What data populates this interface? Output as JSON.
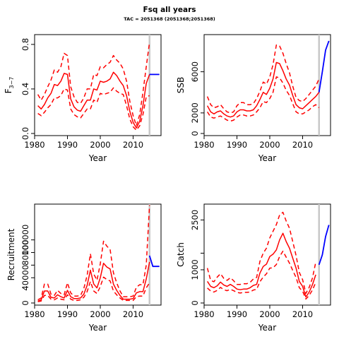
{
  "figure": {
    "title": "Fsq all years",
    "subtitle": "TAC = 2051368 (2051368;2051368)"
  },
  "chart_data": [
    {
      "type": "line",
      "panel": "F",
      "xlabel": "Year",
      "ylabel": "F",
      "ylabel_bar": "‾",
      "ylabel_sub": "3−7",
      "xlim": [
        1980,
        2018.5
      ],
      "ylim": [
        0,
        0.85
      ],
      "xticks": [
        1980,
        1990,
        2000,
        2010
      ],
      "yticks": [
        0.0,
        0.4,
        0.8
      ],
      "ytick_labels": [
        "0.0",
        "0.4",
        "0.8"
      ],
      "grid": false,
      "forecast_divider_year": 2015,
      "colors": {
        "estimate": "#ff0000",
        "ci": "#ff0000",
        "forecast": "#0000ff",
        "divider": "#c8c8c8"
      },
      "x": [
        1981,
        1982,
        1983,
        1984,
        1985,
        1986,
        1987,
        1988,
        1989,
        1990,
        1991,
        1992,
        1993,
        1994,
        1995,
        1996,
        1997,
        1998,
        1999,
        2000,
        2001,
        2002,
        2003,
        2004,
        2005,
        2006,
        2007,
        2008,
        2009,
        2010,
        2011,
        2012,
        2013,
        2014,
        2015
      ],
      "series": [
        {
          "role": "estimate",
          "values": [
            0.25,
            0.22,
            0.26,
            0.32,
            0.36,
            0.44,
            0.43,
            0.47,
            0.54,
            0.53,
            0.31,
            0.24,
            0.21,
            0.2,
            0.25,
            0.3,
            0.3,
            0.4,
            0.39,
            0.47,
            0.46,
            0.47,
            0.49,
            0.55,
            0.52,
            0.47,
            0.43,
            0.34,
            0.2,
            0.1,
            0.05,
            0.11,
            0.25,
            0.45,
            0.53
          ]
        },
        {
          "role": "upper",
          "values": [
            0.35,
            0.3,
            0.35,
            0.42,
            0.48,
            0.57,
            0.55,
            0.6,
            0.72,
            0.7,
            0.42,
            0.33,
            0.28,
            0.27,
            0.32,
            0.4,
            0.4,
            0.53,
            0.52,
            0.6,
            0.59,
            0.62,
            0.64,
            0.7,
            0.66,
            0.63,
            0.58,
            0.47,
            0.29,
            0.16,
            0.07,
            0.17,
            0.37,
            0.6,
            0.82
          ]
        },
        {
          "role": "lower",
          "values": [
            0.18,
            0.16,
            0.19,
            0.23,
            0.26,
            0.32,
            0.32,
            0.34,
            0.4,
            0.39,
            0.22,
            0.17,
            0.15,
            0.14,
            0.18,
            0.22,
            0.22,
            0.3,
            0.28,
            0.36,
            0.35,
            0.36,
            0.37,
            0.41,
            0.38,
            0.36,
            0.35,
            0.25,
            0.13,
            0.06,
            0.03,
            0.07,
            0.17,
            0.33,
            0.34
          ]
        }
      ],
      "forecast": {
        "x": [
          2015,
          2016,
          2017,
          2018
        ],
        "values": [
          0.53,
          0.53,
          0.53,
          0.53
        ]
      }
    },
    {
      "type": "line",
      "panel": "SSB",
      "xlabel": "Year",
      "ylabel": "SSB",
      "xlim": [
        1980,
        2018.5
      ],
      "ylim": [
        0,
        9200
      ],
      "xticks": [
        1980,
        1990,
        2000,
        2010
      ],
      "yticks": [
        0,
        2000,
        6000
      ],
      "ytick_labels": [
        "0",
        "2000",
        "6000"
      ],
      "grid": false,
      "forecast_divider_year": 2015,
      "colors": {
        "estimate": "#ff0000",
        "ci": "#ff0000",
        "forecast": "#0000ff",
        "divider": "#c8c8c8"
      },
      "x": [
        1981,
        1982,
        1983,
        1984,
        1985,
        1986,
        1987,
        1988,
        1989,
        1990,
        1991,
        1992,
        1993,
        1994,
        1995,
        1996,
        1997,
        1998,
        1999,
        2000,
        2001,
        2002,
        2003,
        2004,
        2005,
        2006,
        2007,
        2008,
        2009,
        2010,
        2011,
        2012,
        2013,
        2014,
        2015
      ],
      "series": [
        {
          "role": "estimate",
          "values": [
            2700,
            2100,
            1900,
            2100,
            2200,
            1900,
            1700,
            1600,
            1700,
            2100,
            2300,
            2300,
            2200,
            2200,
            2300,
            2700,
            3300,
            4000,
            3800,
            4400,
            5300,
            6900,
            6800,
            6100,
            5300,
            4700,
            3700,
            2800,
            2500,
            2400,
            2700,
            3000,
            3300,
            3600,
            4000
          ]
        },
        {
          "role": "upper",
          "values": [
            3600,
            2800,
            2500,
            2600,
            2800,
            2400,
            2100,
            2000,
            2100,
            2700,
            3000,
            3000,
            2800,
            2800,
            2900,
            3400,
            4100,
            5000,
            4800,
            5500,
            6700,
            8600,
            8500,
            7800,
            6800,
            5900,
            4600,
            3500,
            3200,
            3100,
            3400,
            3800,
            4200,
            4600,
            5300
          ]
        },
        {
          "role": "lower",
          "values": [
            2100,
            1600,
            1500,
            1600,
            1700,
            1500,
            1300,
            1200,
            1300,
            1600,
            1800,
            1800,
            1700,
            1700,
            1800,
            2100,
            2500,
            3100,
            3000,
            3400,
            4000,
            5500,
            5400,
            4900,
            4200,
            3700,
            2900,
            2100,
            1900,
            1900,
            2100,
            2300,
            2600,
            2800,
            2500
          ]
        }
      ],
      "forecast": {
        "x": [
          2015,
          2016,
          2017,
          2018
        ],
        "values": [
          4000,
          6000,
          8100,
          9000
        ]
      }
    },
    {
      "type": "line",
      "panel": "Recruitment",
      "xlabel": "Year",
      "ylabel": "Recruitment",
      "xlim": [
        1980,
        2018.5
      ],
      "ylim": [
        0,
        150000
      ],
      "xticks": [
        1980,
        1990,
        2000,
        2010
      ],
      "yticks": [
        0,
        40000,
        60000,
        80000,
        100000
      ],
      "ytick_labels": [
        "0",
        "40000",
        "",
        "80000",
        "100000"
      ],
      "ytick_labels_all": [
        "0",
        "40000",
        "60000",
        "80000",
        "100000"
      ],
      "grid": false,
      "forecast_divider_year": 2015,
      "colors": {
        "estimate": "#ff0000",
        "ci": "#ff0000",
        "forecast": "#0000ff",
        "divider": "#c8c8c8"
      },
      "x": [
        1981,
        1982,
        1983,
        1984,
        1985,
        1986,
        1987,
        1988,
        1989,
        1990,
        1991,
        1992,
        1993,
        1994,
        1995,
        1996,
        1997,
        1998,
        1999,
        2000,
        2001,
        2002,
        2003,
        2004,
        2005,
        2006,
        2007,
        2008,
        2009,
        2010,
        2011,
        2012,
        2013,
        2014,
        2015
      ],
      "series": [
        {
          "role": "estimate",
          "values": [
            3000,
            5000,
            19000,
            19000,
            9000,
            8000,
            13000,
            10000,
            8000,
            20000,
            10000,
            7000,
            7000,
            8000,
            14000,
            28000,
            52000,
            30000,
            24000,
            40000,
            63000,
            57000,
            54000,
            30000,
            20000,
            12000,
            6000,
            6000,
            6000,
            7000,
            16000,
            18000,
            18000,
            38000,
            65000
          ]
        },
        {
          "role": "upper",
          "values": [
            5000,
            8000,
            30000,
            30000,
            14000,
            12000,
            20000,
            15000,
            13000,
            32000,
            16000,
            11000,
            11000,
            12000,
            23000,
            44000,
            78000,
            46000,
            36000,
            62000,
            98000,
            90000,
            85000,
            48000,
            32000,
            19000,
            10000,
            10000,
            10000,
            11000,
            25000,
            29000,
            29000,
            60000,
            155000
          ]
        },
        {
          "role": "lower",
          "values": [
            2000,
            3000,
            12000,
            12000,
            6000,
            5000,
            8000,
            6000,
            5000,
            13000,
            6000,
            4000,
            4000,
            5000,
            9000,
            18000,
            34000,
            19000,
            15000,
            26000,
            41000,
            37000,
            35000,
            19000,
            13000,
            8000,
            4000,
            4000,
            4000,
            4000,
            10000,
            11000,
            11000,
            24000,
            32000
          ]
        }
      ],
      "forecast": {
        "x": [
          2015,
          2016,
          2017,
          2018
        ],
        "values": [
          75000,
          58000,
          58000,
          58000
        ]
      }
    },
    {
      "type": "line",
      "panel": "Catch",
      "xlabel": "Year",
      "ylabel": "Catch",
      "xlim": [
        1980,
        2018.5
      ],
      "ylim": [
        0,
        2850
      ],
      "xticks": [
        1980,
        1990,
        2000,
        2010
      ],
      "yticks": [
        0,
        1000,
        1500,
        2500
      ],
      "ytick_labels": [
        "0",
        "1000",
        "",
        "2500"
      ],
      "ytick_labels_all": [
        "0",
        "1000",
        "1500",
        "2500"
      ],
      "grid": false,
      "forecast_divider_year": 2015,
      "colors": {
        "estimate": "#ff0000",
        "ci": "#ff0000",
        "forecast": "#0000ff",
        "divider": "#c8c8c8"
      },
      "x": [
        1981,
        1982,
        1983,
        1984,
        1985,
        1986,
        1987,
        1988,
        1989,
        1990,
        1991,
        1992,
        1993,
        1994,
        1995,
        1996,
        1997,
        1998,
        1999,
        2000,
        2001,
        2002,
        2003,
        2004,
        2005,
        2006,
        2007,
        2008,
        2009,
        2010,
        2011,
        2012,
        2013,
        2014
      ],
      "series": [
        {
          "role": "estimate",
          "values": [
            650,
            500,
            460,
            520,
            630,
            540,
            500,
            560,
            500,
            420,
            400,
            420,
            420,
            460,
            530,
            560,
            900,
            1100,
            1170,
            1400,
            1470,
            1600,
            1900,
            2100,
            1850,
            1650,
            1350,
            1050,
            650,
            500,
            180,
            330,
            550,
            850
          ]
        },
        {
          "role": "upper",
          "values": [
            1050,
            680,
            640,
            780,
            880,
            740,
            680,
            760,
            670,
            560,
            560,
            580,
            580,
            620,
            720,
            770,
            1250,
            1500,
            1650,
            1960,
            2160,
            2360,
            2650,
            2730,
            2470,
            2250,
            1850,
            1430,
            920,
            700,
            290,
            470,
            750,
            1230
          ]
        },
        {
          "role": "lower",
          "values": [
            450,
            360,
            330,
            380,
            470,
            400,
            370,
            410,
            370,
            320,
            300,
            320,
            320,
            330,
            390,
            410,
            640,
            780,
            880,
            1050,
            1060,
            1160,
            1400,
            1560,
            1380,
            1200,
            980,
            770,
            460,
            350,
            120,
            230,
            390,
            620
          ]
        }
      ],
      "forecast": {
        "x": [
          2015,
          2016,
          2017,
          2018
        ],
        "values": [
          1150,
          1450,
          2000,
          2350
        ]
      }
    }
  ]
}
